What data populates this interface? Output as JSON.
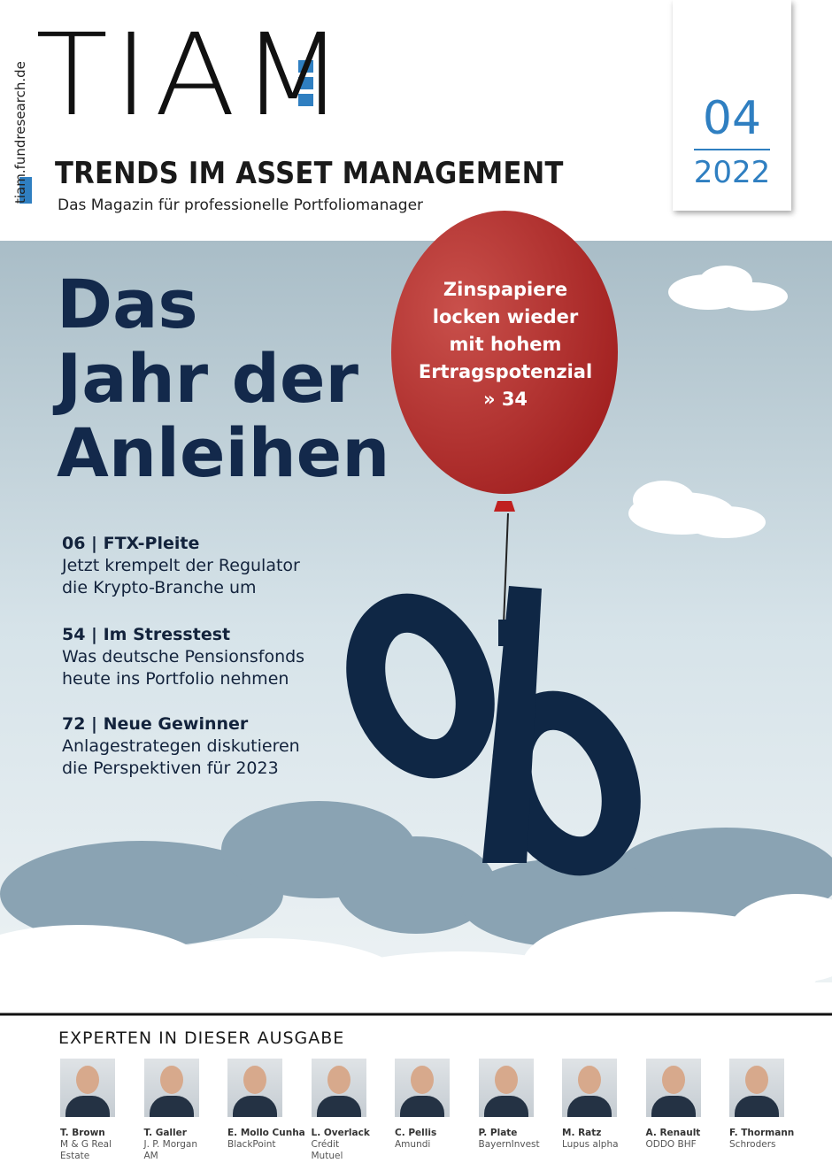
{
  "sidebar": {
    "url": "tiam.fundresearch.de"
  },
  "header": {
    "logo": "TIAM",
    "title": "TRENDS IM ASSET MANAGEMENT",
    "subtitle": "Das Magazin für professionelle Portfoliomanager"
  },
  "issue": {
    "number": "04",
    "year": "2022"
  },
  "headline": {
    "lines": [
      "Das",
      "Jahr der",
      "Anleihen"
    ]
  },
  "balloon": {
    "lines": [
      "Zinspapiere",
      "locken wieder",
      "mit hohem",
      "Ertragspotenzial",
      "» 34"
    ]
  },
  "teasers": [
    {
      "heading": "06  |  FTX-Pleite",
      "lines": [
        "Jetzt krempelt der Regulator",
        "die Krypto-Branche um"
      ]
    },
    {
      "heading": "54  |  Im Stresstest",
      "lines": [
        "Was deutsche Pensionsfonds",
        "heute ins Portfolio nehmen"
      ]
    },
    {
      "heading": "72  |  Neue Gewinner",
      "lines": [
        "Anlagestrategen diskutieren",
        "die Perspektiven für 2023"
      ]
    }
  ],
  "experts": {
    "title": "EXPERTEN IN DIESER AUSGABE",
    "people": [
      {
        "name": "T. Brown",
        "company": "M & G Real Estate"
      },
      {
        "name": "T. Galler",
        "company": "J. P. Morgan AM"
      },
      {
        "name": "E. Mollo Cunha",
        "company": "BlackPoint"
      },
      {
        "name": "L. Overlack",
        "company": "Crédit Mutuel"
      },
      {
        "name": "C. Pellis",
        "company": "Amundi"
      },
      {
        "name": "P. Plate",
        "company": "BayernInvest"
      },
      {
        "name": "M. Ratz",
        "company": "Lupus alpha"
      },
      {
        "name": "A. Renault",
        "company": "ODDO BHF"
      },
      {
        "name": "F. Thormann",
        "company": "Schroders"
      }
    ]
  }
}
